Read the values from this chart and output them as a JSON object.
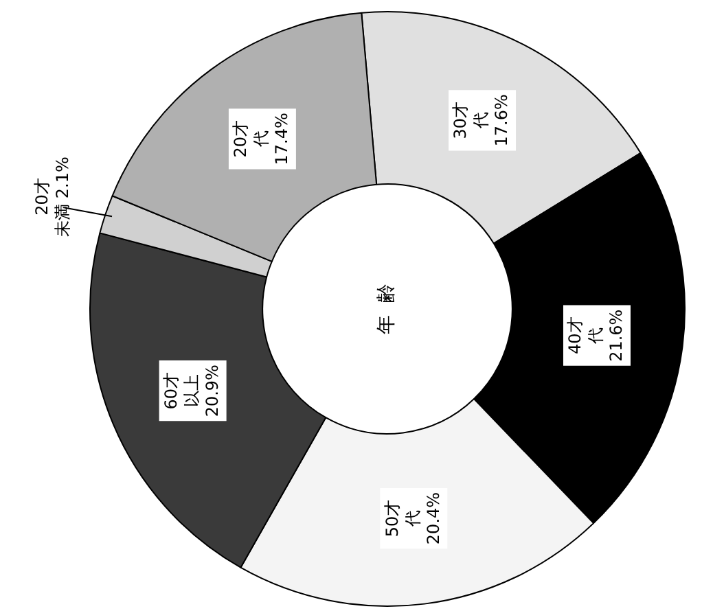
{
  "chart_data": {
    "type": "donut",
    "title": "年齢",
    "categories": [
      "30才代",
      "40才代",
      "50才代",
      "60才以上",
      "20才未満",
      "20才代"
    ],
    "values": [
      17.6,
      21.6,
      20.4,
      20.9,
      2.1,
      17.4
    ],
    "colors": [
      "#e0e0e0",
      "#000000",
      "#f4f4f4",
      "#3a3a3a",
      "#d0d0d0",
      "#b0b0b0"
    ],
    "value_labels": [
      "17.6%",
      "21.6%",
      "20.4%",
      "20.9%",
      "2.1%",
      "17.4%"
    ],
    "legend": false
  }
}
